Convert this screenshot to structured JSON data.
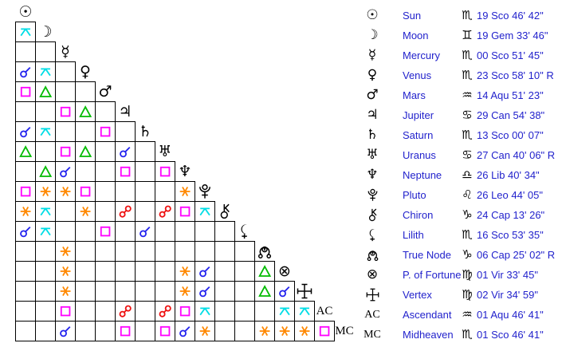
{
  "chart_data": {
    "type": "table",
    "title": "Natal aspect grid and planet positions",
    "text_color": "#2222cc",
    "planets": [
      {
        "id": "sun",
        "name": "Sun",
        "glyph": "☉",
        "sign": "Scorpio",
        "sign_glyph": "♏",
        "position": "19 Sco 46' 42\""
      },
      {
        "id": "moon",
        "name": "Moon",
        "glyph": "☽",
        "sign": "Gemini",
        "sign_glyph": "♊",
        "position": "19 Gem 33' 46\""
      },
      {
        "id": "mercury",
        "name": "Mercury",
        "glyph": "☿",
        "sign": "Scorpio",
        "sign_glyph": "♏",
        "position": "00 Sco 51' 45\""
      },
      {
        "id": "venus",
        "name": "Venus",
        "glyph": "♀",
        "sign": "Scorpio",
        "sign_glyph": "♏",
        "position": "23 Sco 58' 10\" R",
        "retrograde": true
      },
      {
        "id": "mars",
        "name": "Mars",
        "glyph": "♂",
        "sign": "Aquarius",
        "sign_glyph": "♒",
        "position": "14 Aqu 51' 23\""
      },
      {
        "id": "jupiter",
        "name": "Jupiter",
        "glyph": "♃",
        "sign": "Cancer",
        "sign_glyph": "♋",
        "position": "29 Can 54' 38\""
      },
      {
        "id": "saturn",
        "name": "Saturn",
        "glyph": "♄",
        "sign": "Scorpio",
        "sign_glyph": "♏",
        "position": "13 Sco 00' 07\""
      },
      {
        "id": "uranus",
        "name": "Uranus",
        "glyph": "♅",
        "sign": "Cancer",
        "sign_glyph": "♋",
        "position": "27 Can 40' 06\" R",
        "retrograde": true
      },
      {
        "id": "neptune",
        "name": "Neptune",
        "glyph": "♆",
        "sign": "Libra",
        "sign_glyph": "♎",
        "position": "26 Lib 40' 34\""
      },
      {
        "id": "pluto",
        "name": "Pluto",
        "glyph": "svg:pluto",
        "sign": "Leo",
        "sign_glyph": "♌",
        "position": "26 Leo 44' 05\""
      },
      {
        "id": "chiron",
        "name": "Chiron",
        "glyph": "svg:chiron",
        "sign": "Capricorn",
        "sign_glyph": "♑",
        "position": "24 Cap 13' 26\""
      },
      {
        "id": "lilith",
        "name": "Lilith",
        "glyph": "svg:lilith",
        "sign": "Scorpio",
        "sign_glyph": "♏",
        "position": "16 Sco 53' 35\""
      },
      {
        "id": "node",
        "name": "True Node",
        "glyph": "svg:node",
        "sign": "Capricorn",
        "sign_glyph": "♑",
        "position": "06 Cap 25' 02\" R",
        "retrograde": true
      },
      {
        "id": "pof",
        "name": "P. of Fortune",
        "glyph": "⊗",
        "sign": "Virgo",
        "sign_glyph": "♍",
        "position": "01 Vir 33' 45\""
      },
      {
        "id": "vertex",
        "name": "Vertex",
        "glyph": "svg:vertex",
        "sign": "Virgo",
        "sign_glyph": "♍",
        "position": "02 Vir 34' 59\""
      },
      {
        "id": "ac",
        "name": "Ascendant",
        "glyph": "AC",
        "text_glyph": true,
        "sign": "Aquarius",
        "sign_glyph": "♒",
        "position": "01 Aqu 46' 41\""
      },
      {
        "id": "mc",
        "name": "Midheaven",
        "glyph": "MC",
        "text_glyph": true,
        "sign": "Scorpio",
        "sign_glyph": "♏",
        "position": "01 Sco 46' 41\""
      }
    ],
    "aspect_colors": {
      "conjunction": "#2222ee",
      "sextile": "#ff8800",
      "square": "#ff00ff",
      "trine": "#00bb00",
      "opposition": "#ee1111",
      "quincunx": "#00dde6"
    },
    "aspects": [
      {
        "p1": "moon",
        "p2": "sun",
        "type": "quincunx"
      },
      {
        "p1": "venus",
        "p2": "sun",
        "type": "conjunction"
      },
      {
        "p1": "venus",
        "p2": "moon",
        "type": "quincunx"
      },
      {
        "p1": "mars",
        "p2": "sun",
        "type": "square"
      },
      {
        "p1": "mars",
        "p2": "moon",
        "type": "trine"
      },
      {
        "p1": "jupiter",
        "p2": "mercury",
        "type": "square"
      },
      {
        "p1": "jupiter",
        "p2": "venus",
        "type": "trine"
      },
      {
        "p1": "saturn",
        "p2": "sun",
        "type": "conjunction"
      },
      {
        "p1": "saturn",
        "p2": "moon",
        "type": "quincunx"
      },
      {
        "p1": "saturn",
        "p2": "mars",
        "type": "square"
      },
      {
        "p1": "uranus",
        "p2": "sun",
        "type": "trine"
      },
      {
        "p1": "uranus",
        "p2": "mercury",
        "type": "square"
      },
      {
        "p1": "uranus",
        "p2": "venus",
        "type": "trine"
      },
      {
        "p1": "uranus",
        "p2": "jupiter",
        "type": "conjunction"
      },
      {
        "p1": "neptune",
        "p2": "moon",
        "type": "trine"
      },
      {
        "p1": "neptune",
        "p2": "mercury",
        "type": "conjunction"
      },
      {
        "p1": "neptune",
        "p2": "jupiter",
        "type": "square"
      },
      {
        "p1": "neptune",
        "p2": "uranus",
        "type": "square"
      },
      {
        "p1": "pluto",
        "p2": "sun",
        "type": "square"
      },
      {
        "p1": "pluto",
        "p2": "moon",
        "type": "sextile"
      },
      {
        "p1": "pluto",
        "p2": "mercury",
        "type": "sextile"
      },
      {
        "p1": "pluto",
        "p2": "venus",
        "type": "square"
      },
      {
        "p1": "pluto",
        "p2": "neptune",
        "type": "sextile"
      },
      {
        "p1": "chiron",
        "p2": "sun",
        "type": "sextile"
      },
      {
        "p1": "chiron",
        "p2": "moon",
        "type": "quincunx"
      },
      {
        "p1": "chiron",
        "p2": "venus",
        "type": "sextile"
      },
      {
        "p1": "chiron",
        "p2": "jupiter",
        "type": "opposition"
      },
      {
        "p1": "chiron",
        "p2": "uranus",
        "type": "opposition"
      },
      {
        "p1": "chiron",
        "p2": "neptune",
        "type": "square"
      },
      {
        "p1": "chiron",
        "p2": "pluto",
        "type": "quincunx"
      },
      {
        "p1": "lilith",
        "p2": "sun",
        "type": "conjunction"
      },
      {
        "p1": "lilith",
        "p2": "moon",
        "type": "quincunx"
      },
      {
        "p1": "lilith",
        "p2": "mars",
        "type": "square"
      },
      {
        "p1": "lilith",
        "p2": "saturn",
        "type": "conjunction"
      },
      {
        "p1": "node",
        "p2": "mercury",
        "type": "sextile"
      },
      {
        "p1": "pof",
        "p2": "mercury",
        "type": "sextile"
      },
      {
        "p1": "pof",
        "p2": "neptune",
        "type": "sextile"
      },
      {
        "p1": "pof",
        "p2": "pluto",
        "type": "conjunction"
      },
      {
        "p1": "pof",
        "p2": "node",
        "type": "trine"
      },
      {
        "p1": "vertex",
        "p2": "mercury",
        "type": "sextile"
      },
      {
        "p1": "vertex",
        "p2": "neptune",
        "type": "sextile"
      },
      {
        "p1": "vertex",
        "p2": "pluto",
        "type": "conjunction"
      },
      {
        "p1": "vertex",
        "p2": "node",
        "type": "trine"
      },
      {
        "p1": "vertex",
        "p2": "pof",
        "type": "conjunction"
      },
      {
        "p1": "ac",
        "p2": "mercury",
        "type": "square"
      },
      {
        "p1": "ac",
        "p2": "jupiter",
        "type": "opposition"
      },
      {
        "p1": "ac",
        "p2": "uranus",
        "type": "opposition"
      },
      {
        "p1": "ac",
        "p2": "neptune",
        "type": "square"
      },
      {
        "p1": "ac",
        "p2": "pluto",
        "type": "quincunx"
      },
      {
        "p1": "ac",
        "p2": "pof",
        "type": "quincunx"
      },
      {
        "p1": "ac",
        "p2": "vertex",
        "type": "quincunx"
      },
      {
        "p1": "mc",
        "p2": "mercury",
        "type": "conjunction"
      },
      {
        "p1": "mc",
        "p2": "jupiter",
        "type": "square"
      },
      {
        "p1": "mc",
        "p2": "uranus",
        "type": "square"
      },
      {
        "p1": "mc",
        "p2": "neptune",
        "type": "conjunction"
      },
      {
        "p1": "mc",
        "p2": "pluto",
        "type": "sextile"
      },
      {
        "p1": "mc",
        "p2": "node",
        "type": "sextile"
      },
      {
        "p1": "mc",
        "p2": "pof",
        "type": "sextile"
      },
      {
        "p1": "mc",
        "p2": "vertex",
        "type": "sextile"
      },
      {
        "p1": "mc",
        "p2": "ac",
        "type": "square"
      }
    ]
  }
}
